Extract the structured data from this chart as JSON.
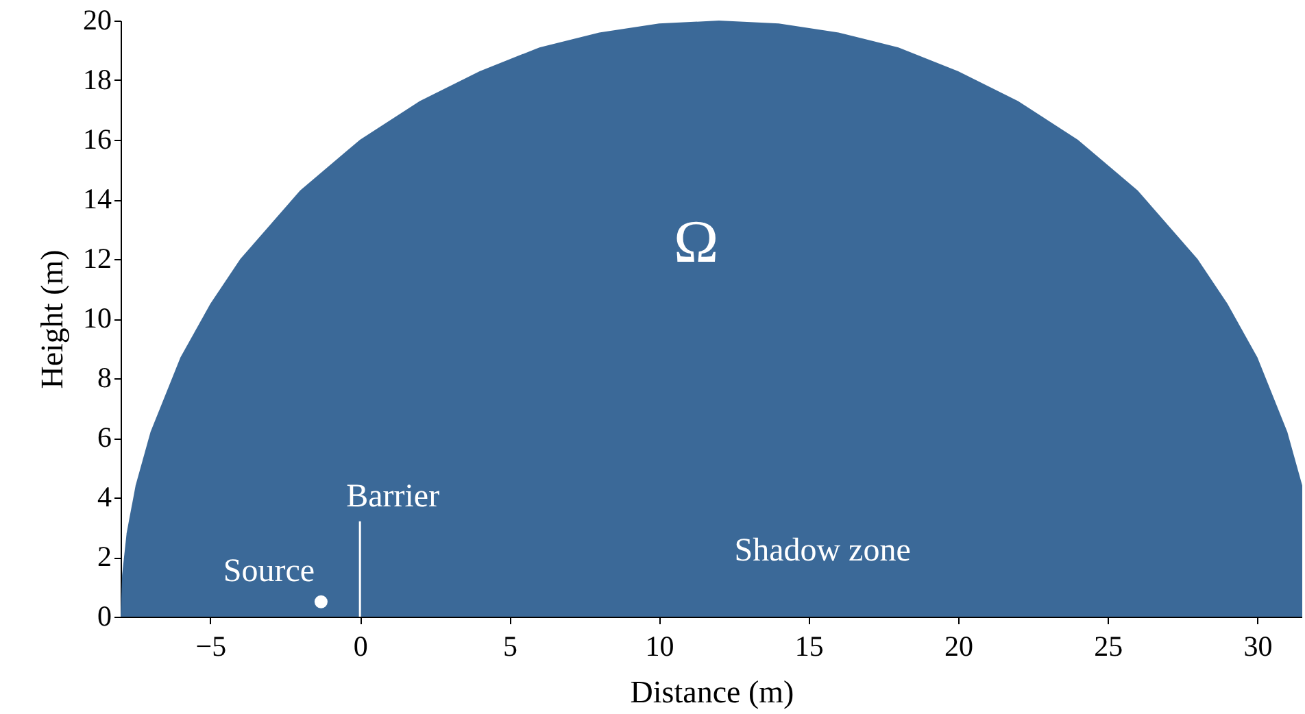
{
  "chart_data": {
    "type": "area",
    "xlabel": "Distance (m)",
    "ylabel": "Height (m)",
    "xlim": [
      -8,
      31.5
    ],
    "ylim": [
      0,
      20
    ],
    "xticks": [
      -5,
      0,
      5,
      10,
      15,
      20,
      25,
      30
    ],
    "yticks": [
      0,
      2,
      4,
      6,
      8,
      10,
      12,
      14,
      16,
      18,
      20
    ],
    "series": [
      {
        "color": "#3b6998",
        "x": [
          -8,
          -7.95,
          -7.8,
          -7.5,
          -7,
          -6,
          -5,
          -4,
          -2,
          0,
          2,
          4,
          6,
          8,
          10,
          12,
          14,
          16,
          18,
          20,
          22,
          24,
          26,
          28,
          29,
          30,
          31,
          31.5
        ],
        "values": [
          0,
          1.4,
          2.8,
          4.4,
          6.2,
          8.7,
          10.5,
          12,
          14.3,
          16,
          17.3,
          18.3,
          19.1,
          19.6,
          19.9,
          20,
          19.9,
          19.6,
          19.1,
          18.3,
          17.3,
          16,
          14.3,
          12,
          10.5,
          8.7,
          6.2,
          4.4
        ]
      },
      {
        "type": "line",
        "color": "#ffffff",
        "x": [
          0,
          0
        ],
        "values": [
          0,
          3.2
        ]
      },
      {
        "type": "scatter",
        "color": "#ffffff",
        "x": [
          -1.3
        ],
        "values": [
          0.5
        ]
      }
    ],
    "annotations": [
      "Ω",
      "Shadow zone",
      {
        "text": "Source",
        "x": -1.3,
        "y": 0.5
      },
      {
        "text": "Barrier",
        "x": 0,
        "y": 3.2
      }
    ]
  }
}
